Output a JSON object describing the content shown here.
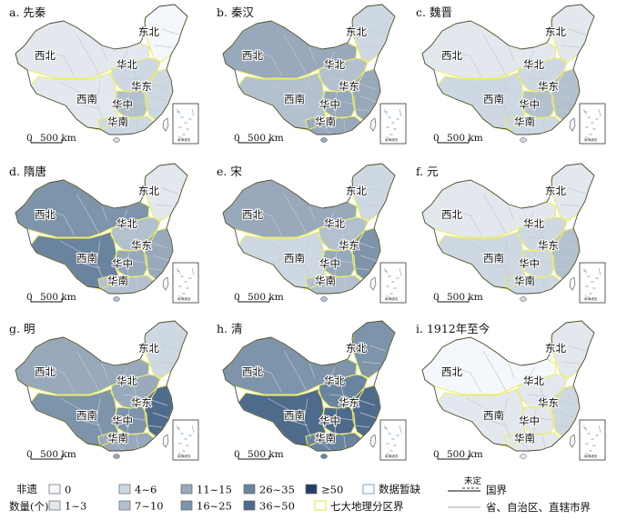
{
  "chart_data": {
    "type": "choropleth-map-panels",
    "classes": [
      "0",
      "1~3",
      "4~6",
      "7~10",
      "11~15",
      "16~25",
      "26~35",
      "36~50",
      "≥50"
    ],
    "colors": {
      "c0": "#f4f8fc",
      "c1": "#e3e8ee",
      "c2": "#ced8e2",
      "c3": "#b3c1cf",
      "c4": "#97a9bb",
      "c5": "#7d94ab",
      "c6": "#6a849f",
      "c7": "#4e6b8c",
      "c8": "#233f66",
      "nodata": "#ffffff",
      "regionBorder": "#ecec68",
      "provinceLine": "#c4c9ce",
      "nationalBorder": "#4a4a4a",
      "water": "#c3d4e6"
    },
    "panels": [
      {
        "title": "a. 先秦",
        "fills": {
          "xibei": 1,
          "xinan": 1,
          "huazhong": 3,
          "huanan": 2,
          "huadong": 2,
          "huabei": 2,
          "dongbei": 0,
          "taiwan": 0
        }
      },
      {
        "title": "b. 秦汉",
        "fills": {
          "xibei": 4,
          "xinan": 3,
          "huazhong": 4,
          "huanan": 4,
          "huadong": 4,
          "huabei": 3,
          "dongbei": 2,
          "taiwan": 0
        }
      },
      {
        "title": "c. 魏晋",
        "fills": {
          "xibei": 1,
          "xinan": 2,
          "huazhong": 3,
          "huanan": 2,
          "huadong": 3,
          "huabei": 2,
          "dongbei": 1,
          "taiwan": 0
        }
      },
      {
        "title": "d. 隋唐",
        "fills": {
          "xibei": 5,
          "xinan": 6,
          "huazhong": 4,
          "huanan": 3,
          "huadong": 4,
          "huabei": 3,
          "dongbei": 1,
          "taiwan": 0
        }
      },
      {
        "title": "e. 宋",
        "fills": {
          "xibei": 4,
          "xinan": 2,
          "huazhong": 4,
          "huanan": 3,
          "huadong": 5,
          "huabei": 3,
          "dongbei": 2,
          "taiwan": 0
        }
      },
      {
        "title": "f. 元",
        "fills": {
          "xibei": 1,
          "xinan": 2,
          "huazhong": 2,
          "huanan": 2,
          "huadong": 3,
          "huabei": 2,
          "dongbei": 1,
          "taiwan": 0
        }
      },
      {
        "title": "g. 明",
        "fills": {
          "xibei": 4,
          "xinan": 5,
          "huazhong": 5,
          "huanan": 4,
          "huadong": 7,
          "huabei": 4,
          "dongbei": 2,
          "taiwan": 0
        }
      },
      {
        "title": "h. 清",
        "fills": {
          "xibei": 5,
          "xinan": 7,
          "huazhong": 7,
          "huanan": 6,
          "huadong": 7,
          "huabei": 6,
          "dongbei": 5,
          "taiwan": 0
        }
      },
      {
        "title": "i. 1912年至今",
        "fills": {
          "xibei": 0,
          "xinan": 1,
          "huazhong": 1,
          "huanan": 1,
          "huadong": 2,
          "huabei": 1,
          "dongbei": 1,
          "taiwan": 0
        }
      }
    ],
    "region_labels": {
      "xibei": "西北",
      "dongbei": "东北",
      "huabei": "华北",
      "huadong": "华东",
      "huazhong": "华中",
      "xinan": "西南",
      "huanan": "华南"
    },
    "scalebar": {
      "zero": "0",
      "label": "500 km"
    },
    "inset_label": "南海诸岛",
    "legend": {
      "title_line1": "非遗",
      "title_line2": "数量(个)",
      "nodata": "数据暂缺",
      "region_boundary": "七大地理分区界",
      "undetermined": "未定",
      "national_boundary": "国界",
      "province_boundary": "省、自治区、直辖市界"
    }
  }
}
